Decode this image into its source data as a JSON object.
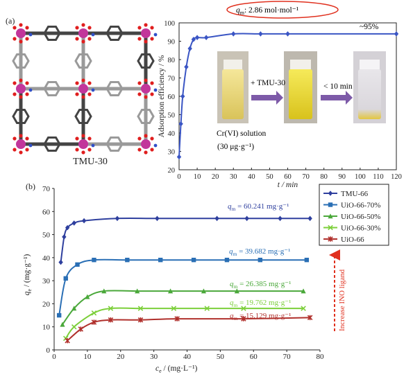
{
  "panel_a": {
    "label": "(a)",
    "structure_caption": "TMU-30",
    "qm_annotation": "q_m: 2.86 mol·mol⁻¹",
    "qm_annotation_parts": {
      "sym": "q",
      "sub": "m",
      "rest": ": 2.86 mol·mol⁻¹"
    },
    "plateau_annotation": "~95%",
    "photo_labels": {
      "solution": "Cr(VI) solution",
      "concentration": "(30 μg·g⁻¹)",
      "arrow1": "+ TMU-30",
      "arrow2": "< 10 min"
    }
  },
  "panel_b": {
    "label": "(b)",
    "side_annotation": "Increase INO ligand",
    "qm_labels": [
      {
        "sym": "q",
        "sub": "m",
        "rest": " = 60.241 mg·g⁻¹",
        "color": "#2e3f9e"
      },
      {
        "sym": "q",
        "sub": "m",
        "rest": " = 39.682 mg·g⁻¹",
        "color": "#2a6fb5"
      },
      {
        "sym": "q",
        "sub": "m",
        "rest": " = 26.385 mg·g⁻¹",
        "color": "#4aa83a"
      },
      {
        "sym": "q",
        "sub": "m",
        "rest": " = 19.762 mg·g⁻¹",
        "color": "#7ccf3a"
      },
      {
        "sym": "q",
        "sub": "m",
        "rest": " = 15.129 mg·g⁻¹",
        "color": "#b0302c"
      }
    ]
  },
  "chart_data": [
    {
      "type": "line",
      "xlabel": "t / min",
      "ylabel": "Adsorption efficiency / %",
      "xlim": [
        0,
        120
      ],
      "ylim": [
        20,
        100
      ],
      "xticks": [
        0,
        10,
        20,
        30,
        40,
        50,
        60,
        70,
        80,
        90,
        100,
        110,
        120
      ],
      "yticks": [
        20,
        30,
        40,
        50,
        60,
        70,
        80,
        90,
        100
      ],
      "grid": false,
      "color": "#3a55c4",
      "x": [
        0,
        1,
        2,
        4,
        6,
        8,
        10,
        15,
        30,
        45,
        60,
        120
      ],
      "y": [
        27,
        45,
        60,
        76,
        86,
        91,
        92,
        92,
        94,
        94,
        94,
        94
      ]
    },
    {
      "type": "line",
      "xlabel": "c_e / (mg·L⁻¹)",
      "ylabel": "q_e / (mg·g⁻¹)",
      "xlim": [
        0,
        80
      ],
      "ylim": [
        0,
        70
      ],
      "xticks": [
        0,
        10,
        20,
        30,
        40,
        50,
        60,
        70,
        80
      ],
      "yticks": [
        0,
        10,
        20,
        30,
        40,
        50,
        60,
        70
      ],
      "grid": false,
      "legend": "top-right",
      "series": [
        {
          "name": "TMU-66",
          "color": "#2e3f9e",
          "marker": "diamond",
          "x": [
            2,
            3,
            4,
            6,
            9,
            19,
            31,
            49,
            58,
            68,
            77
          ],
          "y": [
            38,
            49,
            53,
            55,
            56,
            57,
            57,
            57,
            57,
            57,
            57
          ]
        },
        {
          "name": "UiO-66-70%",
          "color": "#2a6fb5",
          "marker": "square",
          "x": [
            1.5,
            3.5,
            7,
            12,
            22,
            32,
            42,
            52,
            62,
            76
          ],
          "y": [
            15,
            31,
            37,
            39,
            39,
            39,
            39,
            39,
            39,
            39
          ]
        },
        {
          "name": "UiO-66-50%",
          "color": "#4aa83a",
          "marker": "triangle",
          "x": [
            2.5,
            6,
            10,
            15,
            25,
            35,
            45,
            55,
            75
          ],
          "y": [
            11,
            18,
            23,
            25.5,
            25.5,
            25.5,
            25.5,
            25.5,
            25.5
          ]
        },
        {
          "name": "UiO-66-30%",
          "color": "#7ccf3a",
          "marker": "x",
          "x": [
            3.5,
            6,
            12,
            17,
            26,
            36,
            46,
            57,
            75
          ],
          "y": [
            5,
            10,
            16,
            18,
            18,
            18,
            18,
            18,
            18
          ]
        },
        {
          "name": "UiO-66",
          "color": "#b0302c",
          "marker": "star",
          "x": [
            4,
            8,
            12,
            17,
            26,
            37,
            57,
            77
          ],
          "y": [
            4,
            9,
            12,
            13,
            13,
            13.5,
            13.5,
            14
          ]
        }
      ]
    }
  ]
}
